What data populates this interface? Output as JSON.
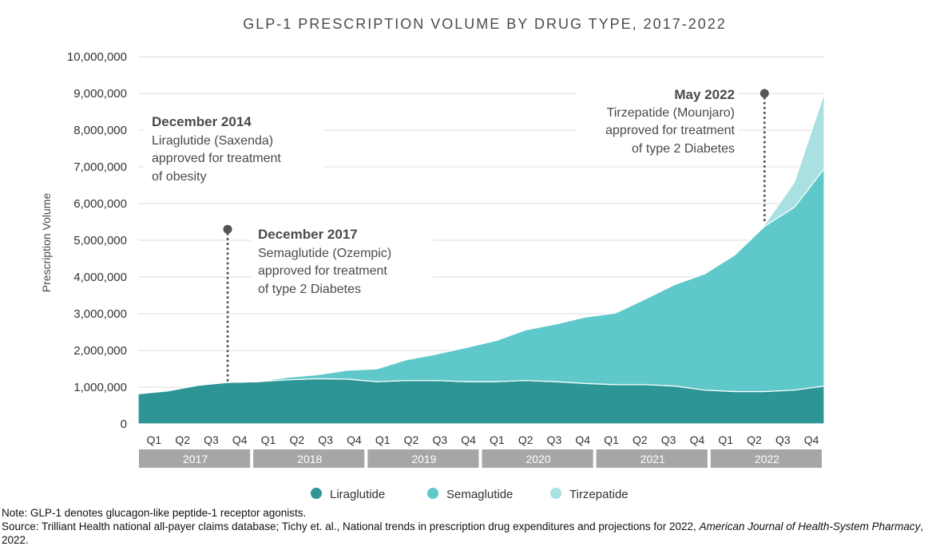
{
  "chart_data": {
    "type": "area",
    "stacked": true,
    "title": "GLP-1 PRESCRIPTION VOLUME BY DRUG TYPE, 2017-2022",
    "ylabel": "Prescription Volume",
    "xlabel": "",
    "ylim": [
      0,
      10000000
    ],
    "y_ticks": [
      "0",
      "1,000,000",
      "2,000,000",
      "3,000,000",
      "4,000,000",
      "5,000,000",
      "6,000,000",
      "7,000,000",
      "8,000,000",
      "9,000,000",
      "10,000,000"
    ],
    "years": [
      "2017",
      "2018",
      "2019",
      "2020",
      "2021",
      "2022"
    ],
    "quarters": [
      "Q1",
      "Q2",
      "Q3",
      "Q4"
    ],
    "grid": true,
    "legend_position": "bottom",
    "series": [
      {
        "name": "Liraglutide",
        "color": "#2e9597",
        "values": [
          820000,
          900000,
          1050000,
          1130000,
          1150000,
          1200000,
          1230000,
          1220000,
          1150000,
          1180000,
          1180000,
          1150000,
          1150000,
          1180000,
          1150000,
          1100000,
          1070000,
          1070000,
          1030000,
          920000,
          880000,
          880000,
          920000,
          1030000
        ]
      },
      {
        "name": "Semaglutide",
        "color": "#5fc8cb",
        "values": [
          0,
          0,
          0,
          0,
          0,
          70000,
          110000,
          240000,
          350000,
          570000,
          720000,
          930000,
          1120000,
          1380000,
          1570000,
          1810000,
          1950000,
          2330000,
          2770000,
          3170000,
          3720000,
          4500000,
          4980000,
          5920000
        ]
      },
      {
        "name": "Tirzepatide",
        "color": "#a9e0e2",
        "values": [
          0,
          0,
          0,
          0,
          0,
          0,
          0,
          0,
          0,
          0,
          0,
          0,
          0,
          0,
          0,
          0,
          0,
          0,
          0,
          0,
          0,
          40000,
          680000,
          2050000
        ]
      }
    ],
    "annotations": [
      {
        "heading": "December 2014",
        "lines": [
          "Liraglutide (Saxenda)",
          "approved for treatment",
          "of obesity"
        ]
      },
      {
        "heading": "December 2017",
        "lines": [
          "Semaglutide (Ozempic)",
          "approved for treatment",
          "of type 2 Diabetes"
        ],
        "marker_index": 3,
        "marker_value": 5300000
      },
      {
        "heading": "May 2022",
        "lines": [
          "Tirzepatide (Mounjaro)",
          "approved for treatment",
          "of type 2 Diabetes"
        ],
        "marker_index": 21,
        "marker_value": 9000000
      }
    ]
  },
  "notes": {
    "note": "Note: GLP-1 denotes glucagon-like peptide-1 receptor agonists.",
    "source": "Source: Trilliant Health national all-payer claims database; Tichy et. al., National trends in prescription drug expenditures and projections for 2022,",
    "journal": "American Journal of Health-System Pharmacy",
    "year": ", 2022."
  }
}
